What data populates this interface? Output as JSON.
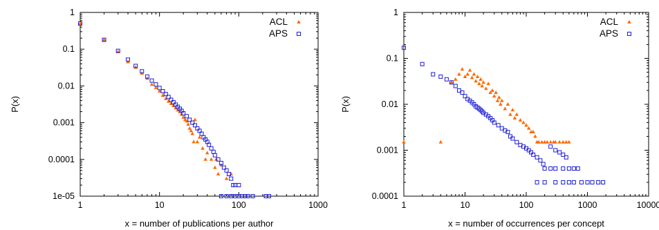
{
  "chart_data": [
    {
      "type": "scatter",
      "xlabel": "x = number of publications per author",
      "ylabel": "P(x)",
      "xscale": "log",
      "yscale": "log",
      "xlim": [
        1,
        1000
      ],
      "ylim": [
        1e-05,
        1
      ],
      "xticks": [
        "1",
        "10",
        "100",
        "1000"
      ],
      "yticks": [
        "1",
        "0.1",
        "0.01",
        "0.001",
        "0.0001",
        "1e-05"
      ],
      "legend_position": "top-right",
      "series": [
        {
          "name": "ACL",
          "color": "#ff6a00",
          "marker": "triangle",
          "points": [
            [
              1,
              0.5
            ],
            [
              2,
              0.18
            ],
            [
              3,
              0.085
            ],
            [
              4,
              0.045
            ],
            [
              5,
              0.032
            ],
            [
              6,
              0.022
            ],
            [
              7,
              0.016
            ],
            [
              8,
              0.011
            ],
            [
              9,
              0.009
            ],
            [
              10,
              0.0072
            ],
            [
              11,
              0.0055
            ],
            [
              12,
              0.0045
            ],
            [
              13,
              0.0038
            ],
            [
              14,
              0.0033
            ],
            [
              15,
              0.0029
            ],
            [
              16,
              0.0025
            ],
            [
              17,
              0.0022
            ],
            [
              18,
              0.002
            ],
            [
              19,
              0.0017
            ],
            [
              20,
              0.0014
            ],
            [
              21,
              0.0012
            ],
            [
              22,
              0.0011
            ],
            [
              23,
              0.0009
            ],
            [
              24,
              0.0007
            ],
            [
              25,
              0.0006
            ],
            [
              26,
              0.0005
            ],
            [
              27,
              0.0003
            ],
            [
              28,
              0.0012
            ],
            [
              30,
              0.0003
            ],
            [
              32,
              0.0004
            ],
            [
              35,
              0.0002
            ],
            [
              38,
              0.0001
            ],
            [
              40,
              0.00015
            ],
            [
              45,
              0.0001
            ],
            [
              50,
              6e-05
            ],
            [
              52,
              0.0001
            ],
            [
              55,
              4e-05
            ],
            [
              60,
              7e-05
            ],
            [
              70,
              3e-05
            ],
            [
              80,
              4e-05
            ]
          ]
        },
        {
          "name": "APS",
          "color": "#1c1cd6",
          "marker": "square",
          "points": [
            [
              1,
              0.5
            ],
            [
              2,
              0.18
            ],
            [
              3,
              0.09
            ],
            [
              4,
              0.052
            ],
            [
              5,
              0.035
            ],
            [
              6,
              0.025
            ],
            [
              7,
              0.018
            ],
            [
              8,
              0.014
            ],
            [
              9,
              0.011
            ],
            [
              10,
              0.0088
            ],
            [
              11,
              0.0072
            ],
            [
              12,
              0.006
            ],
            [
              13,
              0.005
            ],
            [
              14,
              0.0042
            ],
            [
              15,
              0.0036
            ],
            [
              16,
              0.0031
            ],
            [
              17,
              0.0027
            ],
            [
              18,
              0.0024
            ],
            [
              19,
              0.0021
            ],
            [
              20,
              0.0018
            ],
            [
              22,
              0.0015
            ],
            [
              24,
              0.0012
            ],
            [
              26,
              0.001
            ],
            [
              28,
              0.00085
            ],
            [
              30,
              0.0007
            ],
            [
              32,
              0.0006
            ],
            [
              34,
              0.0005
            ],
            [
              36,
              0.0004
            ],
            [
              38,
              0.00035
            ],
            [
              40,
              0.0003
            ],
            [
              42,
              0.00025
            ],
            [
              45,
              0.0002
            ],
            [
              48,
              0.00016
            ],
            [
              50,
              0.00013
            ],
            [
              55,
              0.0001
            ],
            [
              60,
              8e-05
            ],
            [
              65,
              6e-05
            ],
            [
              70,
              5e-05
            ],
            [
              75,
              4e-05
            ],
            [
              80,
              3e-05
            ],
            [
              85,
              2e-05
            ],
            [
              90,
              2e-05
            ],
            [
              100,
              2e-05
            ],
            [
              60,
              1e-05
            ],
            [
              70,
              1e-05
            ],
            [
              80,
              1e-05
            ],
            [
              90,
              1e-05
            ],
            [
              100,
              1e-05
            ],
            [
              110,
              1e-05
            ],
            [
              120,
              1e-05
            ],
            [
              130,
              1e-05
            ],
            [
              150,
              1e-05
            ],
            [
              220,
              1e-05
            ],
            [
              240,
              1e-05
            ]
          ]
        }
      ]
    },
    {
      "type": "scatter",
      "xlabel": "x = number of occurrences per concept",
      "ylabel": "P(x)",
      "xscale": "log",
      "yscale": "log",
      "xlim": [
        1,
        10000
      ],
      "ylim": [
        0.0001,
        1
      ],
      "xticks": [
        "1",
        "10",
        "100",
        "1000",
        "10000"
      ],
      "yticks": [
        "1",
        "0.1",
        "0.01",
        "0.001",
        "0.0001"
      ],
      "legend_position": "top-right",
      "series": [
        {
          "name": "ACL",
          "color": "#ff6a00",
          "marker": "triangle",
          "points": [
            [
              1,
              0.0015
            ],
            [
              4,
              0.0015
            ],
            [
              6,
              0.03
            ],
            [
              7,
              0.035
            ],
            [
              8,
              0.045
            ],
            [
              9,
              0.058
            ],
            [
              10,
              0.04
            ],
            [
              11,
              0.045
            ],
            [
              12,
              0.055
            ],
            [
              13,
              0.038
            ],
            [
              14,
              0.045
            ],
            [
              15,
              0.032
            ],
            [
              16,
              0.04
            ],
            [
              17,
              0.028
            ],
            [
              18,
              0.035
            ],
            [
              19,
              0.025
            ],
            [
              20,
              0.03
            ],
            [
              22,
              0.022
            ],
            [
              24,
              0.028
            ],
            [
              26,
              0.018
            ],
            [
              28,
              0.02
            ],
            [
              30,
              0.015
            ],
            [
              32,
              0.018
            ],
            [
              34,
              0.012
            ],
            [
              36,
              0.014
            ],
            [
              38,
              0.01
            ],
            [
              40,
              0.012
            ],
            [
              45,
              0.008
            ],
            [
              50,
              0.01
            ],
            [
              55,
              0.006
            ],
            [
              60,
              0.0075
            ],
            [
              65,
              0.005
            ],
            [
              70,
              0.006
            ],
            [
              80,
              0.0045
            ],
            [
              90,
              0.004
            ],
            [
              100,
              0.0035
            ],
            [
              110,
              0.003
            ],
            [
              120,
              0.0025
            ],
            [
              130,
              0.0025
            ],
            [
              140,
              0.002
            ],
            [
              150,
              0.0015
            ],
            [
              160,
              0.0015
            ],
            [
              180,
              0.0015
            ],
            [
              200,
              0.0015
            ],
            [
              220,
              0.0015
            ],
            [
              250,
              0.0015
            ],
            [
              280,
              0.0015
            ],
            [
              300,
              0.0015
            ],
            [
              350,
              0.0015
            ],
            [
              400,
              0.0015
            ],
            [
              450,
              0.0015
            ],
            [
              500,
              0.0015
            ]
          ]
        },
        {
          "name": "APS",
          "color": "#1c1cd6",
          "marker": "square",
          "points": [
            [
              1,
              0.17
            ],
            [
              2,
              0.075
            ],
            [
              3,
              0.045
            ],
            [
              4,
              0.04
            ],
            [
              5,
              0.035
            ],
            [
              6,
              0.03
            ],
            [
              7,
              0.025
            ],
            [
              8,
              0.02
            ],
            [
              9,
              0.018
            ],
            [
              10,
              0.015
            ],
            [
              11,
              0.013
            ],
            [
              12,
              0.012
            ],
            [
              13,
              0.011
            ],
            [
              14,
              0.01
            ],
            [
              15,
              0.009
            ],
            [
              16,
              0.0085
            ],
            [
              17,
              0.008
            ],
            [
              18,
              0.0075
            ],
            [
              19,
              0.007
            ],
            [
              20,
              0.0065
            ],
            [
              22,
              0.006
            ],
            [
              24,
              0.0055
            ],
            [
              26,
              0.005
            ],
            [
              28,
              0.0045
            ],
            [
              30,
              0.004
            ],
            [
              35,
              0.0035
            ],
            [
              40,
              0.003
            ],
            [
              45,
              0.0027
            ],
            [
              50,
              0.0025
            ],
            [
              55,
              0.002
            ],
            [
              60,
              0.0018
            ],
            [
              70,
              0.0015
            ],
            [
              80,
              0.0013
            ],
            [
              90,
              0.0012
            ],
            [
              100,
              0.0011
            ],
            [
              110,
              0.001
            ],
            [
              120,
              0.0009
            ],
            [
              130,
              0.0008
            ],
            [
              150,
              0.0007
            ],
            [
              170,
              0.0006
            ],
            [
              190,
              0.0005
            ],
            [
              200,
              0.0004
            ],
            [
              250,
              0.0004
            ],
            [
              300,
              0.0004
            ],
            [
              400,
              0.0004
            ],
            [
              500,
              0.0004
            ],
            [
              600,
              0.0004
            ],
            [
              700,
              0.0004
            ],
            [
              150,
              0.0002
            ],
            [
              200,
              0.0002
            ],
            [
              300,
              0.0002
            ],
            [
              400,
              0.0002
            ],
            [
              500,
              0.0002
            ],
            [
              600,
              0.0002
            ],
            [
              800,
              0.0002
            ],
            [
              1000,
              0.0002
            ],
            [
              1200,
              0.0002
            ],
            [
              1500,
              0.0002
            ],
            [
              1800,
              0.0002
            ],
            [
              250,
              0.0012
            ],
            [
              300,
              0.001
            ],
            [
              350,
              0.0009
            ],
            [
              400,
              0.0008
            ],
            [
              450,
              0.0007
            ]
          ]
        }
      ]
    }
  ]
}
